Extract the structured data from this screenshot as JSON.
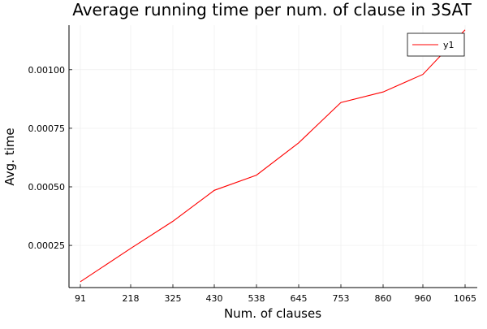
{
  "chart_data": {
    "type": "line",
    "title": "Average running time per num. of clause in 3SAT",
    "xlabel": "Num. of clauses",
    "ylabel": "Avg. time",
    "x": [
      91,
      218,
      325,
      430,
      538,
      645,
      753,
      860,
      960,
      1065
    ],
    "series": [
      {
        "name": "y1",
        "color": "#ff0000",
        "values": [
          9.5e-05,
          0.000237,
          0.000353,
          0.000485,
          0.00055,
          0.000688,
          0.00086,
          0.000905,
          0.00098,
          0.00117
        ]
      }
    ],
    "xticks": [
      "91",
      "218",
      "325",
      "430",
      "538",
      "645",
      "753",
      "860",
      "960",
      "1065"
    ],
    "yticks": [
      {
        "value": 0.00025,
        "label": "0.00025"
      },
      {
        "value": 0.0005,
        "label": "0.00050"
      },
      {
        "value": 0.00075,
        "label": "0.00075"
      },
      {
        "value": 0.001,
        "label": "0.00100"
      }
    ],
    "ylim": [
      7e-05,
      0.00119
    ],
    "grid": true,
    "legend_position": "top-right"
  }
}
